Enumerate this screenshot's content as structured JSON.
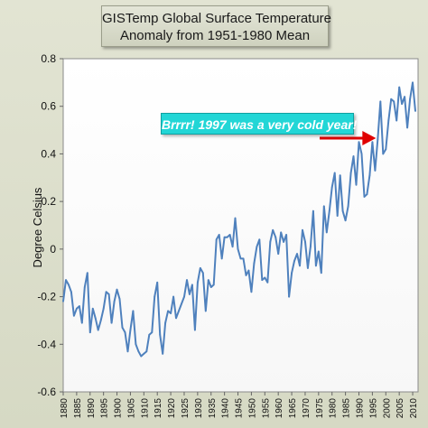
{
  "chart_data": {
    "type": "line",
    "title_line1": "GISTemp Global Surface Temperature",
    "title_line2": "Anomaly from 1951-1980 Mean",
    "ylabel": "Degree Celsius",
    "xlabel": "",
    "ylim": [
      -0.6,
      0.8
    ],
    "xlim": [
      1880,
      2012
    ],
    "yticks": [
      "0.8",
      "0.6",
      "0.4",
      "0.2",
      "0",
      "-0.2",
      "-0.4",
      "-0.6"
    ],
    "ytick_values": [
      0.8,
      0.6,
      0.4,
      0.2,
      0,
      -0.2,
      -0.4,
      -0.6
    ],
    "xticks": [
      1880,
      1885,
      1890,
      1895,
      1900,
      1905,
      1910,
      1915,
      1920,
      1925,
      1930,
      1935,
      1940,
      1945,
      1950,
      1955,
      1960,
      1965,
      1970,
      1975,
      1980,
      1985,
      1990,
      1995,
      2000,
      2005,
      2010
    ],
    "grid": false,
    "series": [
      {
        "color": "#4f81bd",
        "x": [
          1880,
          1881,
          1882,
          1883,
          1884,
          1885,
          1886,
          1887,
          1888,
          1889,
          1890,
          1891,
          1892,
          1893,
          1894,
          1895,
          1896,
          1897,
          1898,
          1899,
          1900,
          1901,
          1902,
          1903,
          1904,
          1905,
          1906,
          1907,
          1908,
          1909,
          1910,
          1911,
          1912,
          1913,
          1914,
          1915,
          1916,
          1917,
          1918,
          1919,
          1920,
          1921,
          1922,
          1923,
          1924,
          1925,
          1926,
          1927,
          1928,
          1929,
          1930,
          1931,
          1932,
          1933,
          1934,
          1935,
          1936,
          1937,
          1938,
          1939,
          1940,
          1941,
          1942,
          1943,
          1944,
          1945,
          1946,
          1947,
          1948,
          1949,
          1950,
          1951,
          1952,
          1953,
          1954,
          1955,
          1956,
          1957,
          1958,
          1959,
          1960,
          1961,
          1962,
          1963,
          1964,
          1965,
          1966,
          1967,
          1968,
          1969,
          1970,
          1971,
          1972,
          1973,
          1974,
          1975,
          1976,
          1977,
          1978,
          1979,
          1980,
          1981,
          1982,
          1983,
          1984,
          1985,
          1986,
          1987,
          1988,
          1989,
          1990,
          1991,
          1992,
          1993,
          1994,
          1995,
          1996,
          1997,
          1998,
          1999,
          2000,
          2001,
          2002,
          2003,
          2004,
          2005,
          2006,
          2007,
          2008,
          2009,
          2010,
          2011
        ],
        "values": [
          -0.22,
          -0.13,
          -0.15,
          -0.18,
          -0.28,
          -0.25,
          -0.24,
          -0.31,
          -0.16,
          -0.1,
          -0.35,
          -0.25,
          -0.29,
          -0.34,
          -0.3,
          -0.25,
          -0.18,
          -0.19,
          -0.31,
          -0.22,
          -0.17,
          -0.21,
          -0.33,
          -0.35,
          -0.43,
          -0.34,
          -0.26,
          -0.4,
          -0.43,
          -0.45,
          -0.44,
          -0.43,
          -0.36,
          -0.35,
          -0.2,
          -0.14,
          -0.36,
          -0.44,
          -0.31,
          -0.26,
          -0.27,
          -0.2,
          -0.29,
          -0.26,
          -0.23,
          -0.2,
          -0.13,
          -0.19,
          -0.15,
          -0.34,
          -0.14,
          -0.08,
          -0.1,
          -0.26,
          -0.13,
          -0.16,
          -0.15,
          0.04,
          0.06,
          -0.04,
          0.05,
          0.05,
          0.06,
          0.01,
          0.13,
          0.0,
          -0.04,
          -0.04,
          -0.11,
          -0.09,
          -0.18,
          -0.06,
          0.01,
          0.04,
          -0.13,
          -0.12,
          -0.14,
          0.03,
          0.08,
          0.05,
          -0.02,
          0.07,
          0.03,
          0.06,
          -0.2,
          -0.1,
          -0.05,
          -0.02,
          -0.07,
          0.08,
          0.03,
          -0.08,
          0.01,
          0.16,
          -0.07,
          -0.01,
          -0.1,
          0.18,
          0.07,
          0.16,
          0.26,
          0.32,
          0.14,
          0.31,
          0.16,
          0.12,
          0.18,
          0.32,
          0.39,
          0.27,
          0.45,
          0.4,
          0.22,
          0.23,
          0.31,
          0.45,
          0.33,
          0.46,
          0.62,
          0.4,
          0.42,
          0.54,
          0.63,
          0.62,
          0.54,
          0.68,
          0.61,
          0.64,
          0.51,
          0.63,
          0.7,
          0.58
        ]
      }
    ],
    "annotation": {
      "text": "Brrrr! 1997 was a very cold year!",
      "box_color": "#22d6d6",
      "arrow_color": "#e00000",
      "points_to_year": 1997
    }
  }
}
